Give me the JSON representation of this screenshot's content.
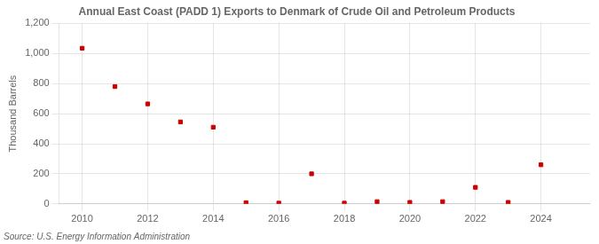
{
  "chart_data": {
    "type": "scatter",
    "title": "Annual East Coast (PADD 1) Exports to Denmark of Crude Oil and Petroleum Products",
    "ylabel": "Thousand Barrels",
    "annotations": [
      "Source: U.S. Energy Information Administration"
    ],
    "x": [
      2010,
      2011,
      2012,
      2013,
      2014,
      2015,
      2016,
      2017,
      2018,
      2019,
      2020,
      2021,
      2022,
      2023,
      2024
    ],
    "values": [
      1035,
      780,
      665,
      545,
      510,
      8,
      5,
      200,
      5,
      15,
      10,
      15,
      110,
      10,
      260
    ],
    "color": "#cc0000",
    "marker": "square",
    "xlim": [
      2009.3,
      2025.5
    ],
    "xticks": [
      2010,
      2012,
      2014,
      2016,
      2018,
      2020,
      2022,
      2024
    ],
    "ylim": [
      0,
      1200
    ],
    "yticks": [
      0,
      200,
      400,
      600,
      800,
      {
        "value": 1000,
        "label": "1,000"
      },
      {
        "value": 1200,
        "label": "1,200"
      }
    ],
    "grid": true
  }
}
